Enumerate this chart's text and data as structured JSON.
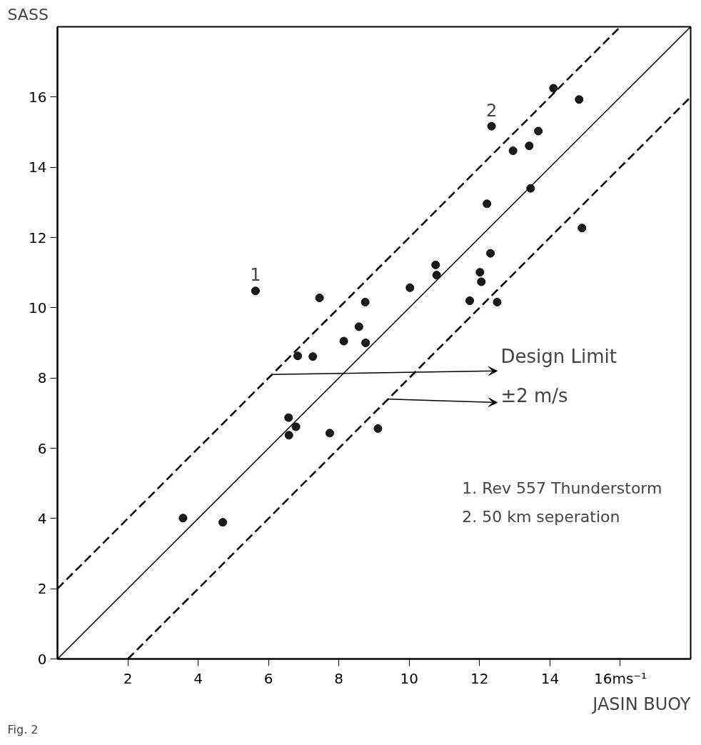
{
  "chart_data": {
    "type": "scatter",
    "xlabel": "JASIN BUOY",
    "ylabel": "SASS",
    "xlim": [
      0,
      18
    ],
    "ylim": [
      0,
      18
    ],
    "xticks": [
      2,
      4,
      6,
      8,
      10,
      12,
      14,
      {
        "value": 16,
        "label": "16ms⁻¹"
      }
    ],
    "yticks": [
      0,
      2,
      4,
      6,
      8,
      10,
      12,
      14,
      16
    ],
    "grid": false,
    "marker": "circle",
    "series": [
      {
        "color": "#1a1a1a",
        "x": [
          5.63,
          7.45,
          8.14,
          6.83,
          7.26,
          8.57,
          8.75,
          8.76,
          10.02,
          10.75,
          10.78,
          12.01,
          12.05,
          11.72,
          12.5,
          12.31,
          12.21,
          14.91,
          13.45,
          12.95,
          13.41,
          13.67,
          12.34,
          14.83,
          14.1,
          3.57,
          4.7,
          6.57,
          6.78,
          6.58,
          7.74,
          9.11
        ],
        "values": [
          10.48,
          10.28,
          9.05,
          8.63,
          8.61,
          9.46,
          10.16,
          9.0,
          10.57,
          11.22,
          10.93,
          11.01,
          10.74,
          10.2,
          10.16,
          11.55,
          12.96,
          12.27,
          13.4,
          14.47,
          14.61,
          15.03,
          15.17,
          15.93,
          16.25,
          4.01,
          3.89,
          6.87,
          6.61,
          6.37,
          6.43,
          6.56
        ]
      },
      {
        "type": "line",
        "marker": "none",
        "color": "#000000",
        "line_style": "solid",
        "x": [
          0,
          18
        ],
        "values": [
          0,
          18
        ]
      },
      {
        "type": "line",
        "marker": "none",
        "color": "#000000",
        "line_style": "dashed",
        "x": [
          0,
          16
        ],
        "values": [
          2,
          18
        ]
      },
      {
        "type": "line",
        "marker": "none",
        "color": "#000000",
        "line_style": "dashed",
        "x": [
          2,
          18
        ],
        "values": [
          0,
          16
        ]
      }
    ],
    "annotations": [
      {
        "text": "1",
        "x": 5.63,
        "y": 10.48
      },
      {
        "text": "2",
        "x": 12.34,
        "y": 15.17
      },
      "Design Limit",
      "±2 m/s",
      "1. Rev 557 Thunderstorm",
      "2. 50 km seperation",
      "Fig. 2"
    ]
  }
}
